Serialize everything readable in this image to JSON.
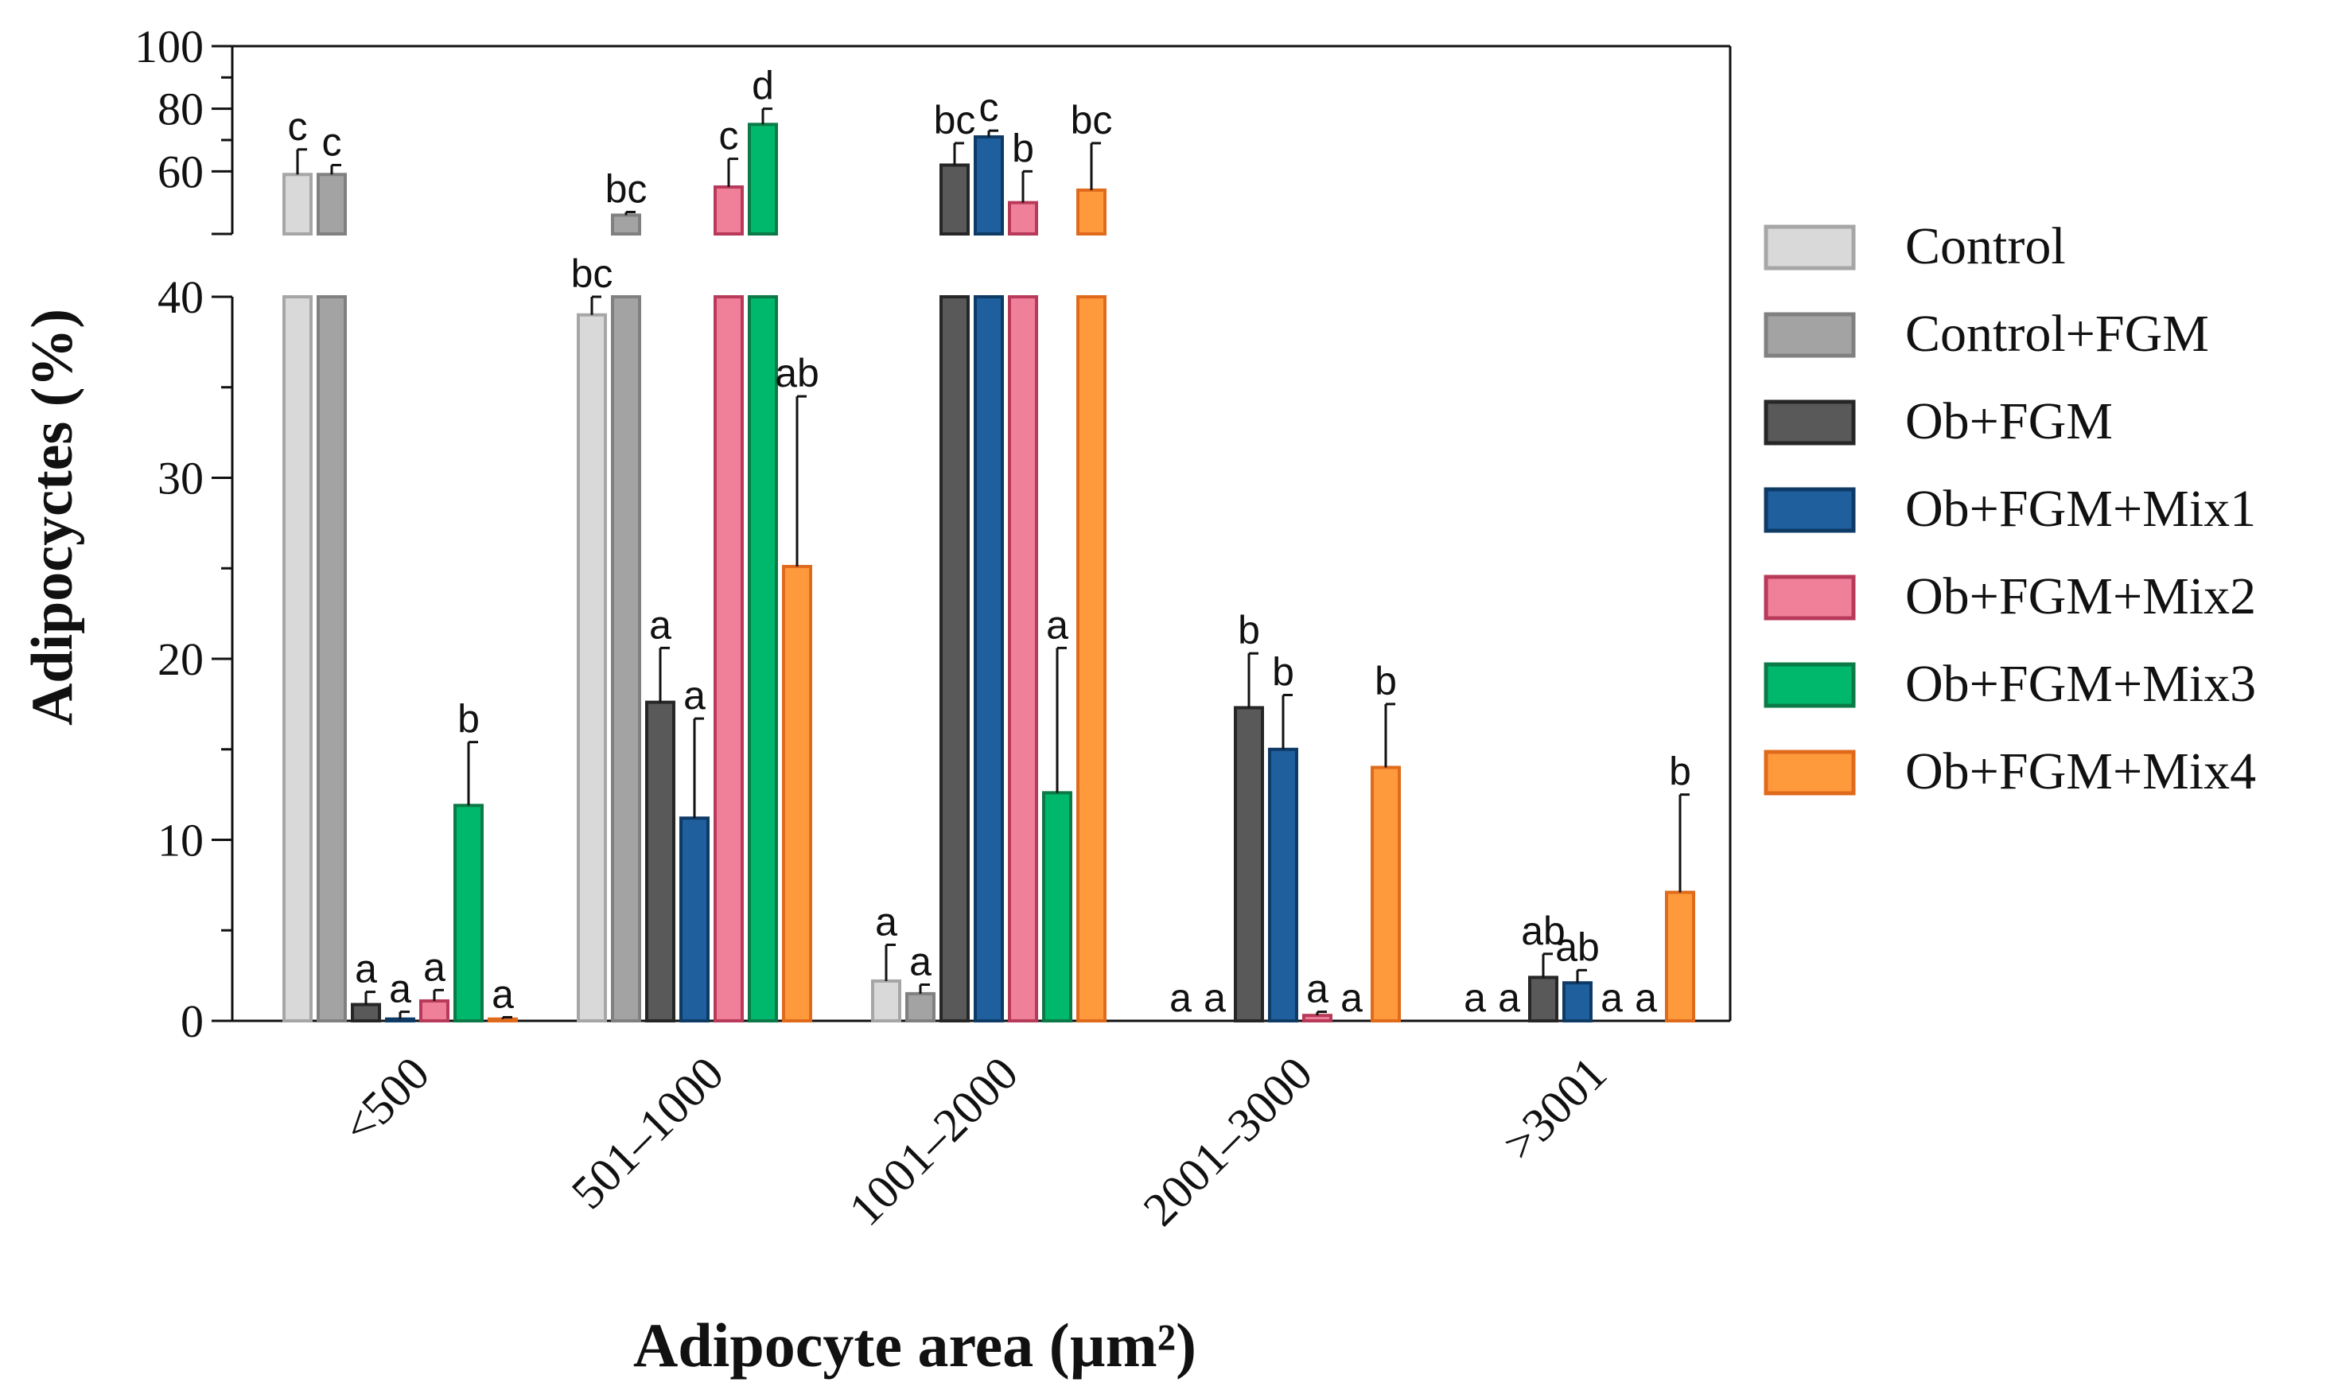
{
  "chart_data": {
    "type": "bar",
    "title": "",
    "xlabel": "Adipocyte area (µm²)",
    "ylabel": "Adipocyctes (%)",
    "ylim": [
      0,
      100
    ],
    "y_axis_break": [
      40,
      50
    ],
    "yticks_lower": [
      "0",
      "10",
      "20",
      "30",
      "40"
    ],
    "yticks_upper": [
      "60",
      "80",
      "100"
    ],
    "grid": false,
    "legend_position": "right",
    "categories": [
      "<500",
      "501–1000",
      "1001–2000",
      "2001–3000",
      ">3001"
    ],
    "series": [
      {
        "name": "Control",
        "color": "#d9d9d9",
        "border": "#a6a6a6",
        "values": [
          59,
          39,
          2.2,
          0,
          0
        ],
        "errors": [
          8,
          1,
          2,
          0,
          0
        ],
        "letters": [
          "c",
          "bc",
          "a",
          "a",
          "a"
        ]
      },
      {
        "name": "Control+FGM",
        "color": "#a3a3a3",
        "border": "#808080",
        "values": [
          59,
          46,
          1.5,
          0,
          0
        ],
        "errors": [
          3,
          1,
          0.5,
          0,
          0
        ],
        "letters": [
          "c",
          "bc",
          "a",
          "a",
          "a"
        ]
      },
      {
        "name": "Ob+FGM",
        "color": "#595959",
        "border": "#262626",
        "values": [
          0.9,
          17.6,
          62,
          17.3,
          2.4
        ],
        "errors": [
          0.7,
          3,
          7,
          3,
          1.3
        ],
        "letters": [
          "a",
          "a",
          "bc",
          "b",
          "ab"
        ]
      },
      {
        "name": "Ob+FGM+Mix1",
        "color": "#1f5f9e",
        "border": "#0e3a66",
        "values": [
          0.1,
          11.2,
          71,
          15,
          2.1
        ],
        "errors": [
          0.4,
          5.5,
          2,
          3,
          0.7
        ],
        "letters": [
          "a",
          "a",
          "c",
          "b",
          "ab"
        ]
      },
      {
        "name": "Ob+FGM+Mix2",
        "color": "#f0809a",
        "border": "#b83a5a",
        "values": [
          1.1,
          55,
          50,
          0.3,
          0
        ],
        "errors": [
          0.6,
          9,
          10,
          0.2,
          0
        ],
        "letters": [
          "a",
          "c",
          "b",
          "a",
          "a"
        ]
      },
      {
        "name": "Ob+FGM+Mix3",
        "color": "#00b86b",
        "border": "#0b7a47",
        "values": [
          11.9,
          75,
          12.6,
          0,
          0
        ],
        "errors": [
          3.5,
          5,
          8,
          0,
          0
        ],
        "letters": [
          "b",
          "d",
          "a",
          "a",
          "a"
        ]
      },
      {
        "name": "Ob+FGM+Mix4",
        "color": "#ff9a3c",
        "border": "#e06a1c",
        "values": [
          0.1,
          25.1,
          54,
          14,
          7.1
        ],
        "errors": [
          0.1,
          9.4,
          15,
          3.5,
          5.4
        ],
        "letters": [
          "a",
          "ab",
          "bc",
          "b",
          "b"
        ]
      }
    ]
  }
}
